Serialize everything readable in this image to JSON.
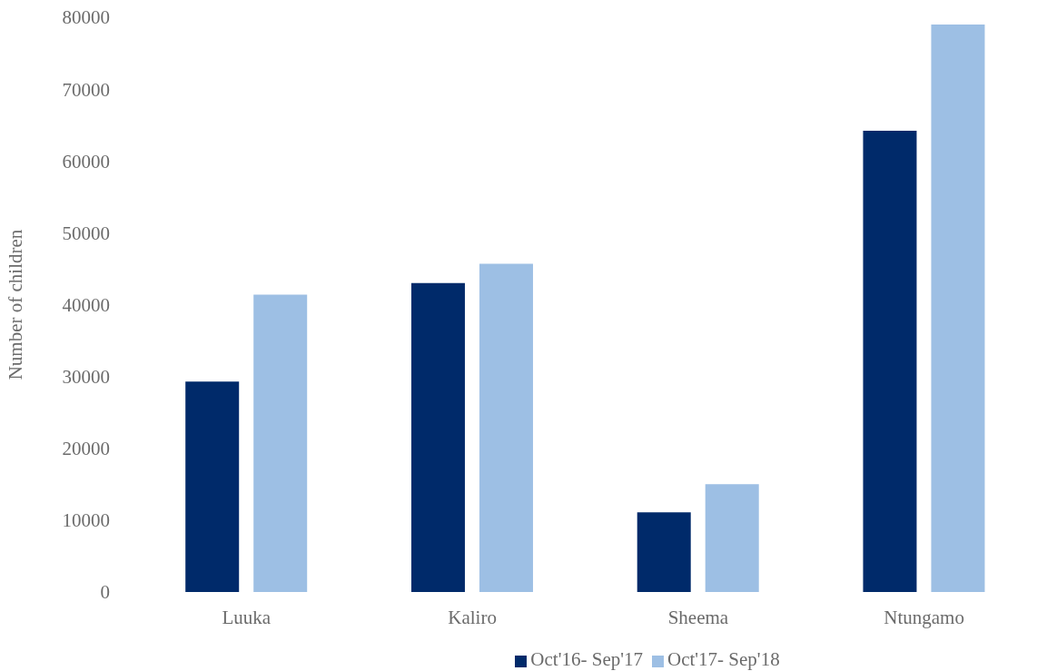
{
  "chart_data": {
    "type": "bar",
    "ylabel": "Number of children",
    "categories": [
      "Luuka",
      "Kaliro",
      "Sheema",
      "Ntungamo"
    ],
    "series": [
      {
        "name": "Oct'16- Sep'17",
        "color": "#002a6a",
        "values": [
          29300,
          43000,
          11100,
          64200
        ]
      },
      {
        "name": "Oct'17- Sep'18",
        "color": "#9dbfe4",
        "values": [
          41400,
          45700,
          15000,
          79000
        ]
      }
    ],
    "ylim": [
      0,
      80000
    ],
    "yticks": [
      0,
      10000,
      20000,
      30000,
      40000,
      50000,
      60000,
      70000,
      80000
    ],
    "grid": false,
    "legend": "bottom"
  }
}
